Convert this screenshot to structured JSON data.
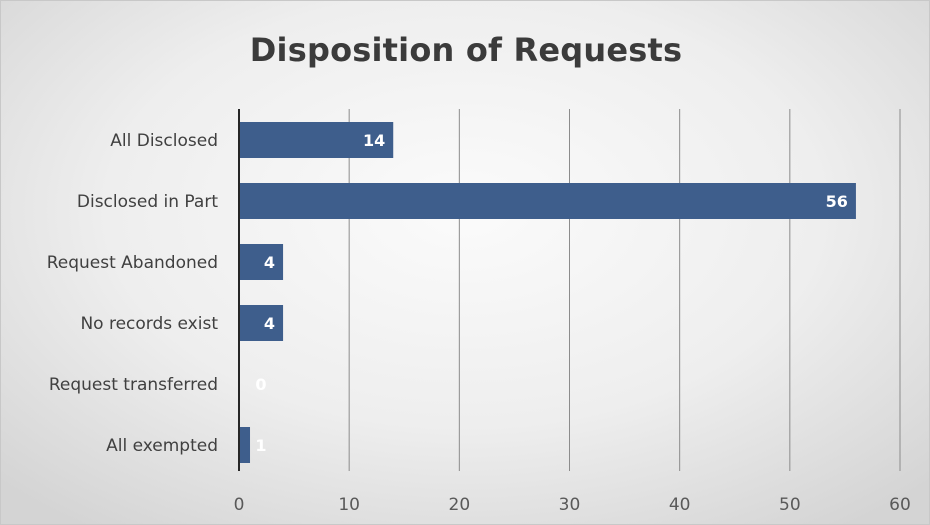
{
  "chart_data": {
    "type": "bar",
    "orientation": "horizontal",
    "title": "Disposition of Requests",
    "categories": [
      "All Disclosed",
      "Disclosed in Part",
      "Request Abandoned",
      "No records exist",
      "Request transferred",
      "All exempted"
    ],
    "values": [
      14,
      56,
      4,
      4,
      0,
      1
    ],
    "data_labels": [
      "14",
      "56",
      "4",
      "4",
      "0",
      "1"
    ],
    "xlim": [
      0,
      60
    ],
    "xticks": [
      0,
      10,
      20,
      30,
      40,
      50,
      60
    ],
    "xlabel": "",
    "ylabel": "",
    "grid": "vertical",
    "legend": "none",
    "bar_color": "#3e5e8c",
    "label_color": "#ffffff"
  }
}
